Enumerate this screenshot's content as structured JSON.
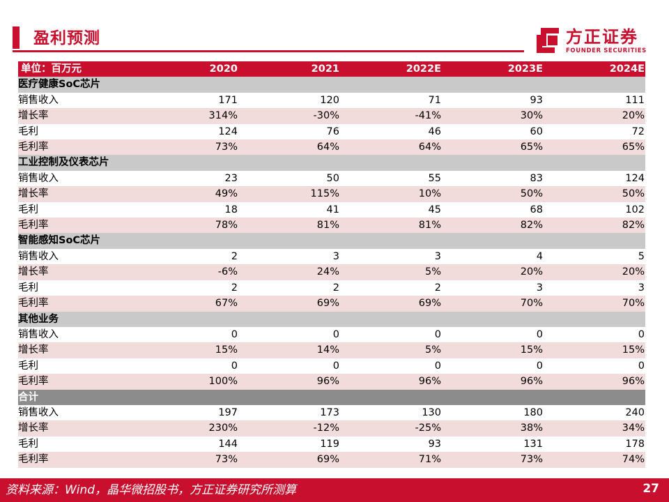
{
  "header": {
    "title": "盈利预测",
    "logo_cn": "方正证券",
    "logo_en": "FOUNDER SECURITIES"
  },
  "table": {
    "unit_label": "单位：百万元",
    "years": [
      "2020",
      "2021",
      "2022E",
      "2023E",
      "2024E"
    ],
    "sections": [
      {
        "name": "医疗健康SoC芯片",
        "rows": [
          {
            "label": "销售收入",
            "values": [
              "171",
              "120",
              "71",
              "93",
              "111"
            ]
          },
          {
            "label": "增长率",
            "values": [
              "314%",
              "-30%",
              "-41%",
              "30%",
              "20%"
            ]
          },
          {
            "label": "毛利",
            "values": [
              "124",
              "76",
              "46",
              "60",
              "72"
            ]
          },
          {
            "label": "毛利率",
            "values": [
              "73%",
              "64%",
              "64%",
              "65%",
              "65%"
            ]
          }
        ]
      },
      {
        "name": "工业控制及仪表芯片",
        "rows": [
          {
            "label": "销售收入",
            "values": [
              "23",
              "50",
              "55",
              "83",
              "124"
            ]
          },
          {
            "label": "增长率",
            "values": [
              "49%",
              "115%",
              "10%",
              "50%",
              "50%"
            ]
          },
          {
            "label": "毛利",
            "values": [
              "18",
              "41",
              "45",
              "68",
              "102"
            ]
          },
          {
            "label": "毛利率",
            "values": [
              "78%",
              "81%",
              "81%",
              "82%",
              "82%"
            ]
          }
        ]
      },
      {
        "name": "智能感知SoC芯片",
        "rows": [
          {
            "label": "销售收入",
            "values": [
              "2",
              "3",
              "3",
              "4",
              "5"
            ]
          },
          {
            "label": "增长率",
            "values": [
              "-6%",
              "24%",
              "5%",
              "20%",
              "20%"
            ]
          },
          {
            "label": "毛利",
            "values": [
              "2",
              "2",
              "2",
              "3",
              "3"
            ]
          },
          {
            "label": "毛利率",
            "values": [
              "67%",
              "69%",
              "69%",
              "70%",
              "70%"
            ]
          }
        ]
      },
      {
        "name": "其他业务",
        "rows": [
          {
            "label": "销售收入",
            "values": [
              "0",
              "0",
              "0",
              "0",
              "0"
            ]
          },
          {
            "label": "增长率",
            "values": [
              "15%",
              "14%",
              "5%",
              "15%",
              "15%"
            ]
          },
          {
            "label": "毛利",
            "values": [
              "0",
              "0",
              "0",
              "0",
              "0"
            ]
          },
          {
            "label": "毛利率",
            "values": [
              "100%",
              "96%",
              "96%",
              "96%",
              "96%"
            ]
          }
        ]
      },
      {
        "name": "合计",
        "total": true,
        "rows": [
          {
            "label": "销售收入",
            "values": [
              "197",
              "173",
              "130",
              "180",
              "240"
            ]
          },
          {
            "label": "增长率",
            "values": [
              "230%",
              "-12%",
              "-25%",
              "38%",
              "34%"
            ]
          },
          {
            "label": "毛利",
            "values": [
              "144",
              "119",
              "93",
              "131",
              "178"
            ]
          },
          {
            "label": "毛利率",
            "values": [
              "73%",
              "69%",
              "71%",
              "73%",
              "74%"
            ]
          }
        ]
      }
    ]
  },
  "footer": {
    "source": "资料来源：Wind，晶华微招股书，方正证券研究所测算",
    "page_number": "27"
  },
  "colors": {
    "brand_red": "#c8102e",
    "row_alt": "#f2dcdb",
    "section_gray": "#c9c9c9",
    "total_gray": "#8c8c8c"
  }
}
